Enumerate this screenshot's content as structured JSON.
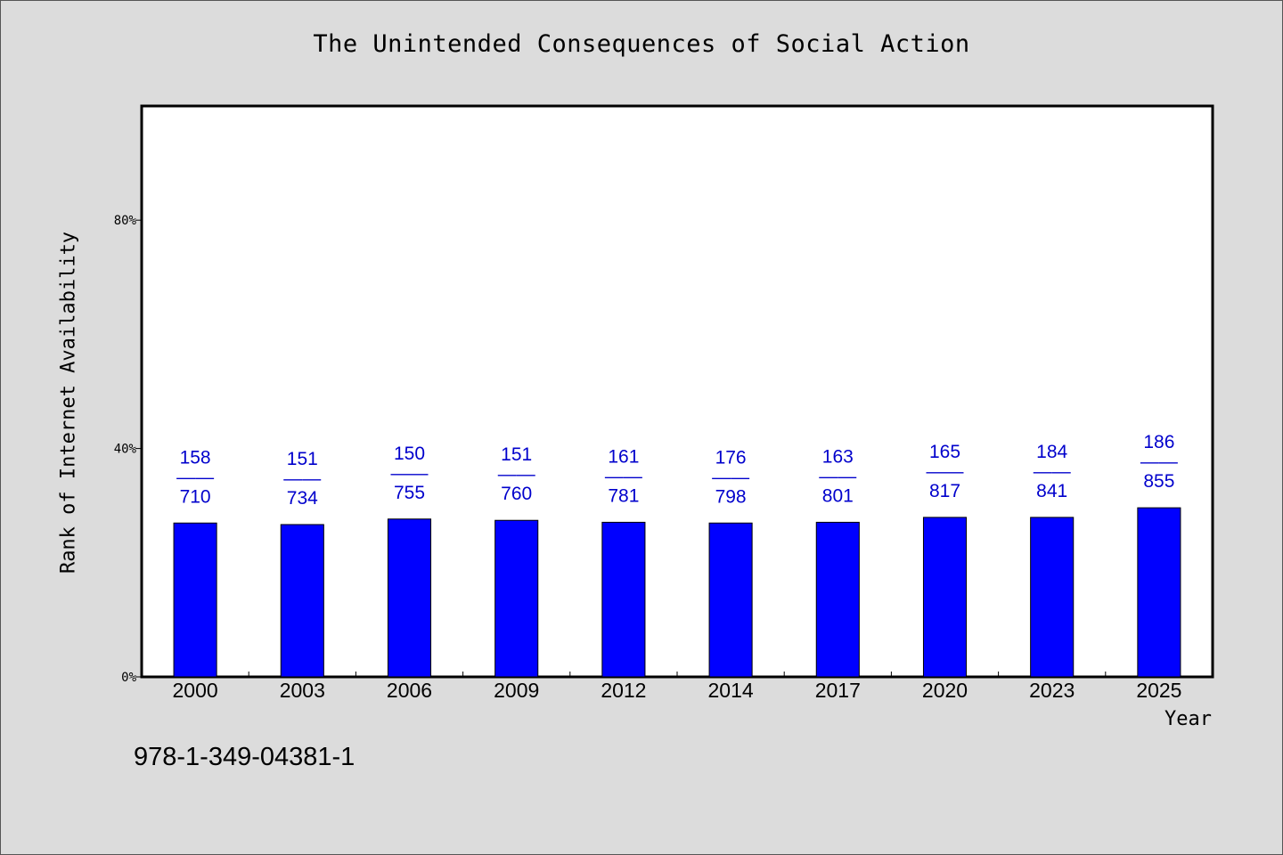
{
  "chart_data": {
    "type": "bar",
    "title": "The Unintended Consequences of Social Action",
    "xlabel": "Year",
    "ylabel": "Rank of Internet Availability",
    "categories": [
      "2000",
      "2003",
      "2006",
      "2009",
      "2012",
      "2014",
      "2017",
      "2020",
      "2023",
      "2025"
    ],
    "values": [
      0.2695,
      0.2668,
      0.2765,
      0.2742,
      0.2708,
      0.2695,
      0.2708,
      0.2794,
      0.2794,
      0.2962
    ],
    "labels_top": [
      "158",
      "151",
      "150",
      "151",
      "161",
      "176",
      "163",
      "165",
      "184",
      "186"
    ],
    "labels_sep": "——",
    "labels_bottom": [
      "710",
      "734",
      "755",
      "760",
      "781",
      "798",
      "801",
      "817",
      "841",
      "855"
    ],
    "ylim": [
      0,
      1
    ],
    "yticks": [
      {
        "value": 0,
        "label": "0%"
      },
      {
        "value": 0.4,
        "label": "40%"
      },
      {
        "value": 0.8,
        "label": "80%"
      }
    ],
    "bar_color": "#0000ff",
    "label_color": "#0000cc",
    "grid": false,
    "legend": "none"
  },
  "footer": {
    "isbn": "978-1-349-04381-1"
  }
}
